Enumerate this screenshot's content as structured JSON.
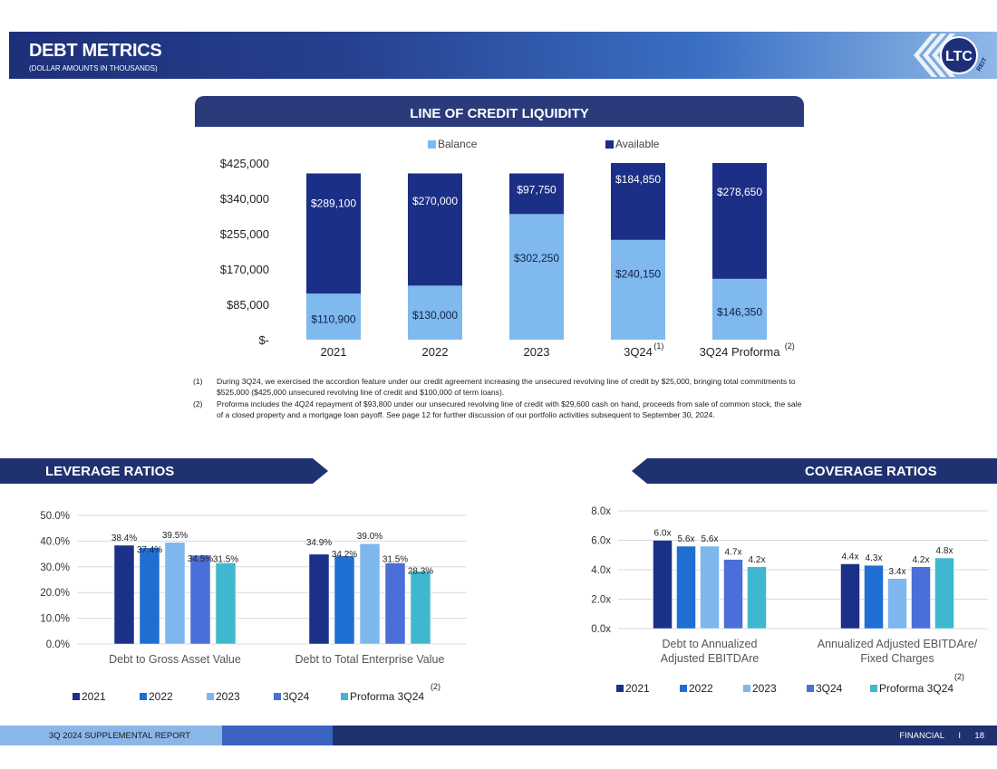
{
  "header": {
    "title": "DEBT METRICS",
    "subtitle": "(DOLLAR AMOUNTS IN THOUSANDS)",
    "logo_text": "LTC",
    "logo_sub": "REIT"
  },
  "colors": {
    "navy": "#1f3170",
    "series_2021": "#1b3187",
    "series_2022": "#1f6fd3",
    "series_2023": "#7db7ee",
    "series_3q24": "#4a6fd8",
    "series_proforma": "#3fb8cf",
    "balance": "#7fb9ee",
    "available": "#1c2f86"
  },
  "line_of_credit": {
    "banner": "LINE OF CREDIT LIQUIDITY",
    "chart_data": {
      "type": "bar",
      "stacked": true,
      "categories": [
        "2021",
        "2022",
        "2023",
        "3Q24",
        "3Q24 Proforma"
      ],
      "category_notes": [
        "",
        "",
        "",
        "(1)",
        "(2)"
      ],
      "series": [
        {
          "name": "Balance",
          "values": [
            110900,
            130000,
            302250,
            240150,
            146350
          ],
          "labels": [
            "$110,900",
            "$130,000",
            "$302,250",
            "$240,150",
            "$146,350"
          ]
        },
        {
          "name": "Available",
          "values": [
            289100,
            270000,
            97750,
            184850,
            278650
          ],
          "labels": [
            "$289,100",
            "$270,000",
            "$97,750",
            "$184,850",
            "$278,650"
          ]
        }
      ],
      "y_ticks": [
        0,
        85000,
        170000,
        255000,
        340000,
        425000
      ],
      "y_tick_labels": [
        "$-",
        "$85,000",
        "$170,000",
        "$255,000",
        "$340,000",
        "$425,000"
      ],
      "ylim": [
        0,
        425000
      ],
      "legend": "top"
    }
  },
  "notes": [
    {
      "num": "(1)",
      "text": "During 3Q24, we exercised the accordion feature under our credit agreement increasing the unsecured revolving line of credit by $25,000, bringing total commitments to $525,000 ($425,000 unsecured revolving line of credit and $100,000 of term loans)."
    },
    {
      "num": "(2)",
      "text": "Proforma includes the 4Q24 repayment of $93,800 under our unsecured revolving line of credit with $29,600 cash on hand, proceeds from sale of common stock, the sale of a closed property and a mortgage loan payoff. See page 12 for further discussion of our portfolio activities subsequent to September 30, 2024."
    }
  ],
  "leverage": {
    "banner": "LEVERAGE RATIOS",
    "chart_data": {
      "type": "bar",
      "categories": [
        "Debt to Gross Asset Value",
        "Debt to Total Enterprise Value"
      ],
      "series": [
        {
          "name": "2021",
          "values": [
            38.4,
            34.9
          ],
          "labels": [
            "38.4%",
            "34.9%"
          ]
        },
        {
          "name": "2022",
          "values": [
            37.4,
            34.2
          ],
          "labels": [
            "37.4%",
            "34.2%"
          ]
        },
        {
          "name": "2023",
          "values": [
            39.5,
            39.0
          ],
          "labels": [
            "39.5%",
            "39.0%"
          ]
        },
        {
          "name": "3Q24",
          "values": [
            34.5,
            31.5
          ],
          "labels": [
            "34.5%",
            "31.5%"
          ]
        },
        {
          "name": "Proforma 3Q24",
          "values": [
            31.5,
            28.3
          ],
          "labels": [
            "31.5%",
            "28.3%"
          ]
        }
      ],
      "y_ticks": [
        0,
        10,
        20,
        30,
        40,
        50
      ],
      "y_tick_labels": [
        "0.0%",
        "10.0%",
        "20.0%",
        "30.0%",
        "40.0%",
        "50.0%"
      ],
      "ylim": [
        0,
        50
      ],
      "legend": "bottom",
      "legend_note": "(2)"
    }
  },
  "coverage": {
    "banner": "COVERAGE RATIOS",
    "chart_data": {
      "type": "bar",
      "categories": [
        "Debt to Annualized|Adjusted EBITDAre",
        "Annualized Adjusted EBITDAre/|Fixed Charges"
      ],
      "series": [
        {
          "name": "2021",
          "values": [
            6.0,
            4.4
          ],
          "labels": [
            "6.0x",
            "4.4x"
          ]
        },
        {
          "name": "2022",
          "values": [
            5.6,
            4.3
          ],
          "labels": [
            "5.6x",
            "4.3x"
          ]
        },
        {
          "name": "2023",
          "values": [
            5.6,
            3.4
          ],
          "labels": [
            "5.6x",
            "3.4x"
          ]
        },
        {
          "name": "3Q24",
          "values": [
            4.7,
            4.2
          ],
          "labels": [
            "4.7x",
            "4.2x"
          ]
        },
        {
          "name": "Proforma 3Q24",
          "values": [
            4.2,
            4.8
          ],
          "labels": [
            "4.2x",
            "4.8x"
          ]
        }
      ],
      "y_ticks": [
        0,
        2,
        4,
        6,
        8
      ],
      "y_tick_labels": [
        "0.0x",
        "2.0x",
        "4.0x",
        "6.0x",
        "8.0x"
      ],
      "ylim": [
        0,
        8
      ],
      "legend": "bottom",
      "legend_note": "(2)"
    }
  },
  "footer": {
    "report": "3Q 2024 SUPPLEMENTAL REPORT",
    "section": "FINANCIAL",
    "separator": "I",
    "page": "18"
  }
}
